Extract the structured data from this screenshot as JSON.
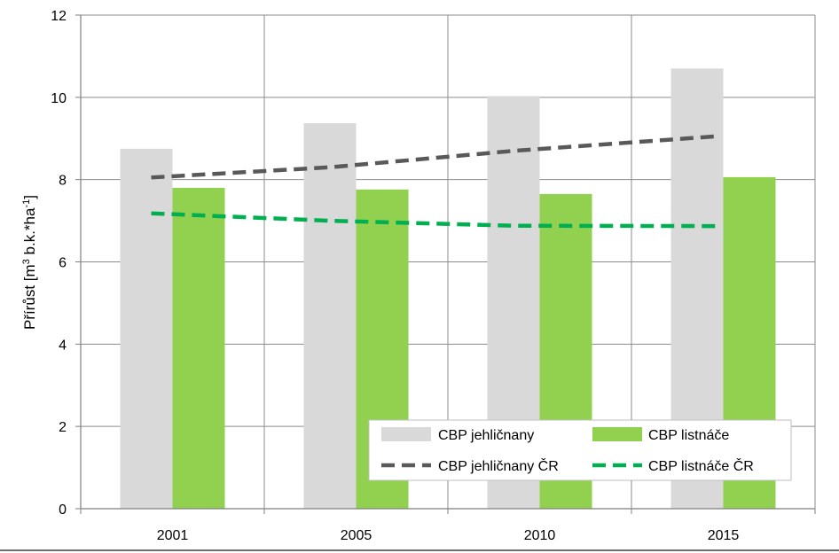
{
  "chart_data": {
    "type": "bar",
    "categories": [
      "2001",
      "2005",
      "2010",
      "2015"
    ],
    "ylabel": "Přírůst [m3 b.k.*ha-1]",
    "ylabel_parts": {
      "pre": "Přírůst [m",
      "sup1": "3",
      "mid": " b.k.*ha",
      "sup2": "-1",
      "post": "]"
    },
    "ylim": [
      0,
      12
    ],
    "yticks": [
      "0",
      "2",
      "4",
      "6",
      "8",
      "10",
      "12"
    ],
    "grid": true,
    "legend_position": "bottom-right",
    "series": [
      {
        "name": "CBP jehličnany",
        "kind": "bar",
        "color": "#d9d9d9",
        "values": [
          8.75,
          9.37,
          10.03,
          10.7
        ]
      },
      {
        "name": "CBP listnáče",
        "kind": "bar",
        "color": "#92d050",
        "values": [
          7.8,
          7.76,
          7.65,
          8.06
        ]
      },
      {
        "name": "CBP jehličnany ČR",
        "kind": "dashed-line",
        "color": "#595959",
        "values": [
          8.05,
          8.3,
          8.7,
          9.05
        ]
      },
      {
        "name": "CBP listnáče ČR",
        "kind": "dashed-line",
        "color": "#00b050",
        "values": [
          7.18,
          7.0,
          6.88,
          6.87
        ]
      }
    ]
  }
}
